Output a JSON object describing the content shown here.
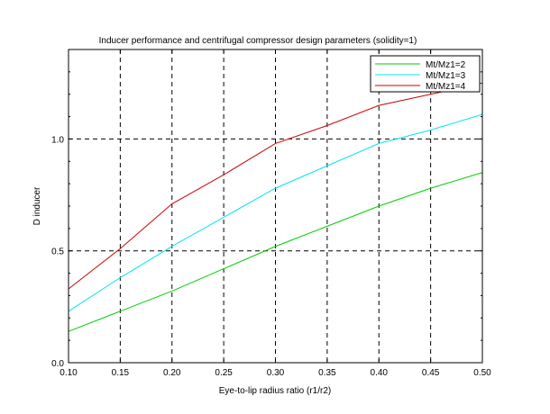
{
  "chart_data": {
    "type": "line",
    "title": "Inducer performance and centrifugal compressor design parameters (solidity=1)",
    "xlabel": "Eye-to-lip radius ratio (r1/r2)",
    "ylabel": "D inducer",
    "xlim": [
      0.1,
      0.5
    ],
    "ylim": [
      0.0,
      1.4
    ],
    "x_ticks": [
      0.1,
      0.15,
      0.2,
      0.25,
      0.3,
      0.35,
      0.4,
      0.45,
      0.5
    ],
    "x_tick_labels": [
      "0.10",
      "0.15",
      "0.20",
      "0.25",
      "0.30",
      "0.35",
      "0.40",
      "0.45",
      "0.50"
    ],
    "y_ticks": [
      0.0,
      0.5,
      1.0
    ],
    "y_tick_labels": [
      "0.0",
      "0.5",
      "1.0"
    ],
    "grid_x": [
      0.15,
      0.2,
      0.25,
      0.3,
      0.35,
      0.4,
      0.45
    ],
    "grid_y": [
      0.5,
      1.0
    ],
    "legend_position": "top-right",
    "series": [
      {
        "name": "Mt/Mz1=2",
        "color": "#00cc00",
        "x": [
          0.1,
          0.15,
          0.2,
          0.25,
          0.3,
          0.35,
          0.4,
          0.45,
          0.5
        ],
        "values": [
          0.14,
          0.23,
          0.32,
          0.42,
          0.52,
          0.61,
          0.7,
          0.78,
          0.85
        ]
      },
      {
        "name": "Mt/Mz1=3",
        "color": "#00e5ee",
        "x": [
          0.1,
          0.15,
          0.2,
          0.25,
          0.3,
          0.35,
          0.4,
          0.45,
          0.5
        ],
        "values": [
          0.23,
          0.38,
          0.52,
          0.65,
          0.78,
          0.88,
          0.98,
          1.04,
          1.11
        ]
      },
      {
        "name": "Mt/Mz1=4",
        "color": "#cc0000",
        "x": [
          0.1,
          0.15,
          0.2,
          0.25,
          0.3,
          0.35,
          0.4,
          0.45,
          0.5
        ],
        "values": [
          0.33,
          0.51,
          0.71,
          0.84,
          0.98,
          1.06,
          1.15,
          1.2,
          1.25
        ]
      }
    ]
  }
}
